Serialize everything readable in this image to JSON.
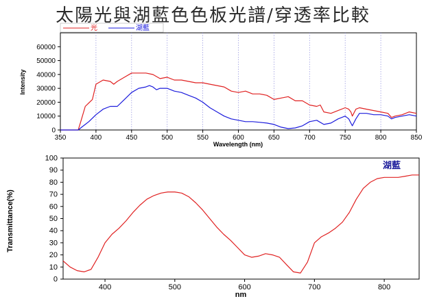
{
  "slide": {
    "title": "太陽光與湖藍色色板光譜/穿透率比較"
  },
  "chart_data": [
    {
      "type": "line",
      "xlabel": "Wavelength (nm)",
      "ylabel": "Intensity",
      "xlim": [
        350,
        850
      ],
      "ylim": [
        0,
        70000
      ],
      "xticks": [
        350,
        400,
        450,
        500,
        550,
        600,
        650,
        700,
        750,
        800,
        850
      ],
      "yticks": [
        0,
        10000,
        20000,
        30000,
        40000,
        50000,
        60000
      ],
      "grid": "vertical dotted",
      "legend": "top-left",
      "series": [
        {
          "name": "光",
          "color": "#e02020",
          "x": [
            350,
            375,
            378,
            385,
            395,
            400,
            410,
            420,
            425,
            430,
            440,
            450,
            460,
            470,
            480,
            490,
            500,
            510,
            520,
            530,
            540,
            550,
            560,
            570,
            580,
            590,
            600,
            610,
            620,
            630,
            640,
            650,
            660,
            670,
            680,
            690,
            700,
            710,
            715,
            720,
            730,
            740,
            750,
            755,
            758,
            760,
            765,
            770,
            780,
            790,
            800,
            810,
            815,
            820,
            830,
            840,
            850
          ],
          "y": [
            0,
            0,
            5000,
            17000,
            22000,
            33000,
            36000,
            35000,
            33000,
            35000,
            38000,
            41000,
            41000,
            41000,
            40000,
            37000,
            38000,
            36000,
            36000,
            35000,
            34000,
            34000,
            33000,
            32000,
            31000,
            28000,
            27000,
            28000,
            26000,
            26000,
            25000,
            22000,
            23000,
            24000,
            21000,
            21000,
            18000,
            17000,
            18000,
            13000,
            12000,
            14000,
            16000,
            15000,
            13000,
            10000,
            15000,
            16000,
            15000,
            14000,
            13000,
            12000,
            9000,
            10000,
            11000,
            13000,
            12000
          ]
        },
        {
          "name": "湖藍",
          "color": "#1a1adc",
          "x": [
            350,
            375,
            380,
            385,
            390,
            400,
            410,
            420,
            430,
            440,
            450,
            460,
            470,
            475,
            480,
            485,
            490,
            500,
            510,
            520,
            530,
            540,
            550,
            560,
            570,
            580,
            590,
            600,
            610,
            620,
            630,
            640,
            650,
            660,
            670,
            680,
            690,
            700,
            710,
            720,
            730,
            740,
            750,
            755,
            758,
            760,
            765,
            770,
            780,
            790,
            800,
            810,
            815,
            820,
            830,
            840,
            850
          ],
          "y": [
            0,
            0,
            2000,
            4000,
            6000,
            11000,
            15000,
            17000,
            17000,
            22000,
            27000,
            30000,
            31000,
            32000,
            31000,
            29000,
            30000,
            30000,
            28000,
            27000,
            25000,
            23000,
            20000,
            16000,
            13000,
            10000,
            8000,
            7000,
            6000,
            6000,
            5500,
            5000,
            4000,
            2000,
            1000,
            1500,
            3000,
            6000,
            7000,
            4000,
            5000,
            8000,
            10000,
            8000,
            5000,
            3000,
            8000,
            12000,
            12000,
            11000,
            11000,
            10000,
            8000,
            9000,
            10000,
            11000,
            10000
          ]
        }
      ]
    },
    {
      "type": "line",
      "xlabel": "nm",
      "ylabel": "Transmittance(%)",
      "xlim": [
        340,
        850
      ],
      "ylim": [
        0,
        100
      ],
      "xticks": [
        400,
        500,
        600,
        700,
        800
      ],
      "yticks": [
        0,
        10,
        20,
        30,
        40,
        50,
        60,
        70,
        80,
        90,
        100
      ],
      "grid": false,
      "annotation": "湖藍",
      "series": [
        {
          "color": "#e02020",
          "x": [
            340,
            350,
            360,
            370,
            380,
            390,
            400,
            410,
            420,
            430,
            440,
            450,
            460,
            470,
            480,
            490,
            500,
            510,
            520,
            530,
            540,
            550,
            560,
            570,
            580,
            590,
            600,
            610,
            620,
            630,
            640,
            650,
            660,
            670,
            680,
            690,
            700,
            710,
            720,
            730,
            740,
            750,
            760,
            770,
            780,
            790,
            800,
            810,
            820,
            830,
            840,
            850
          ],
          "y": [
            15,
            10,
            7,
            6,
            8,
            18,
            30,
            37,
            42,
            48,
            55,
            61,
            66,
            69,
            71,
            72,
            72,
            71,
            68,
            63,
            57,
            50,
            43,
            37,
            32,
            26,
            20,
            18,
            19,
            21,
            20,
            18,
            12,
            6,
            5,
            14,
            30,
            35,
            38,
            42,
            47,
            55,
            66,
            75,
            80,
            83,
            84,
            84,
            84,
            85,
            86,
            86
          ]
        }
      ]
    }
  ]
}
